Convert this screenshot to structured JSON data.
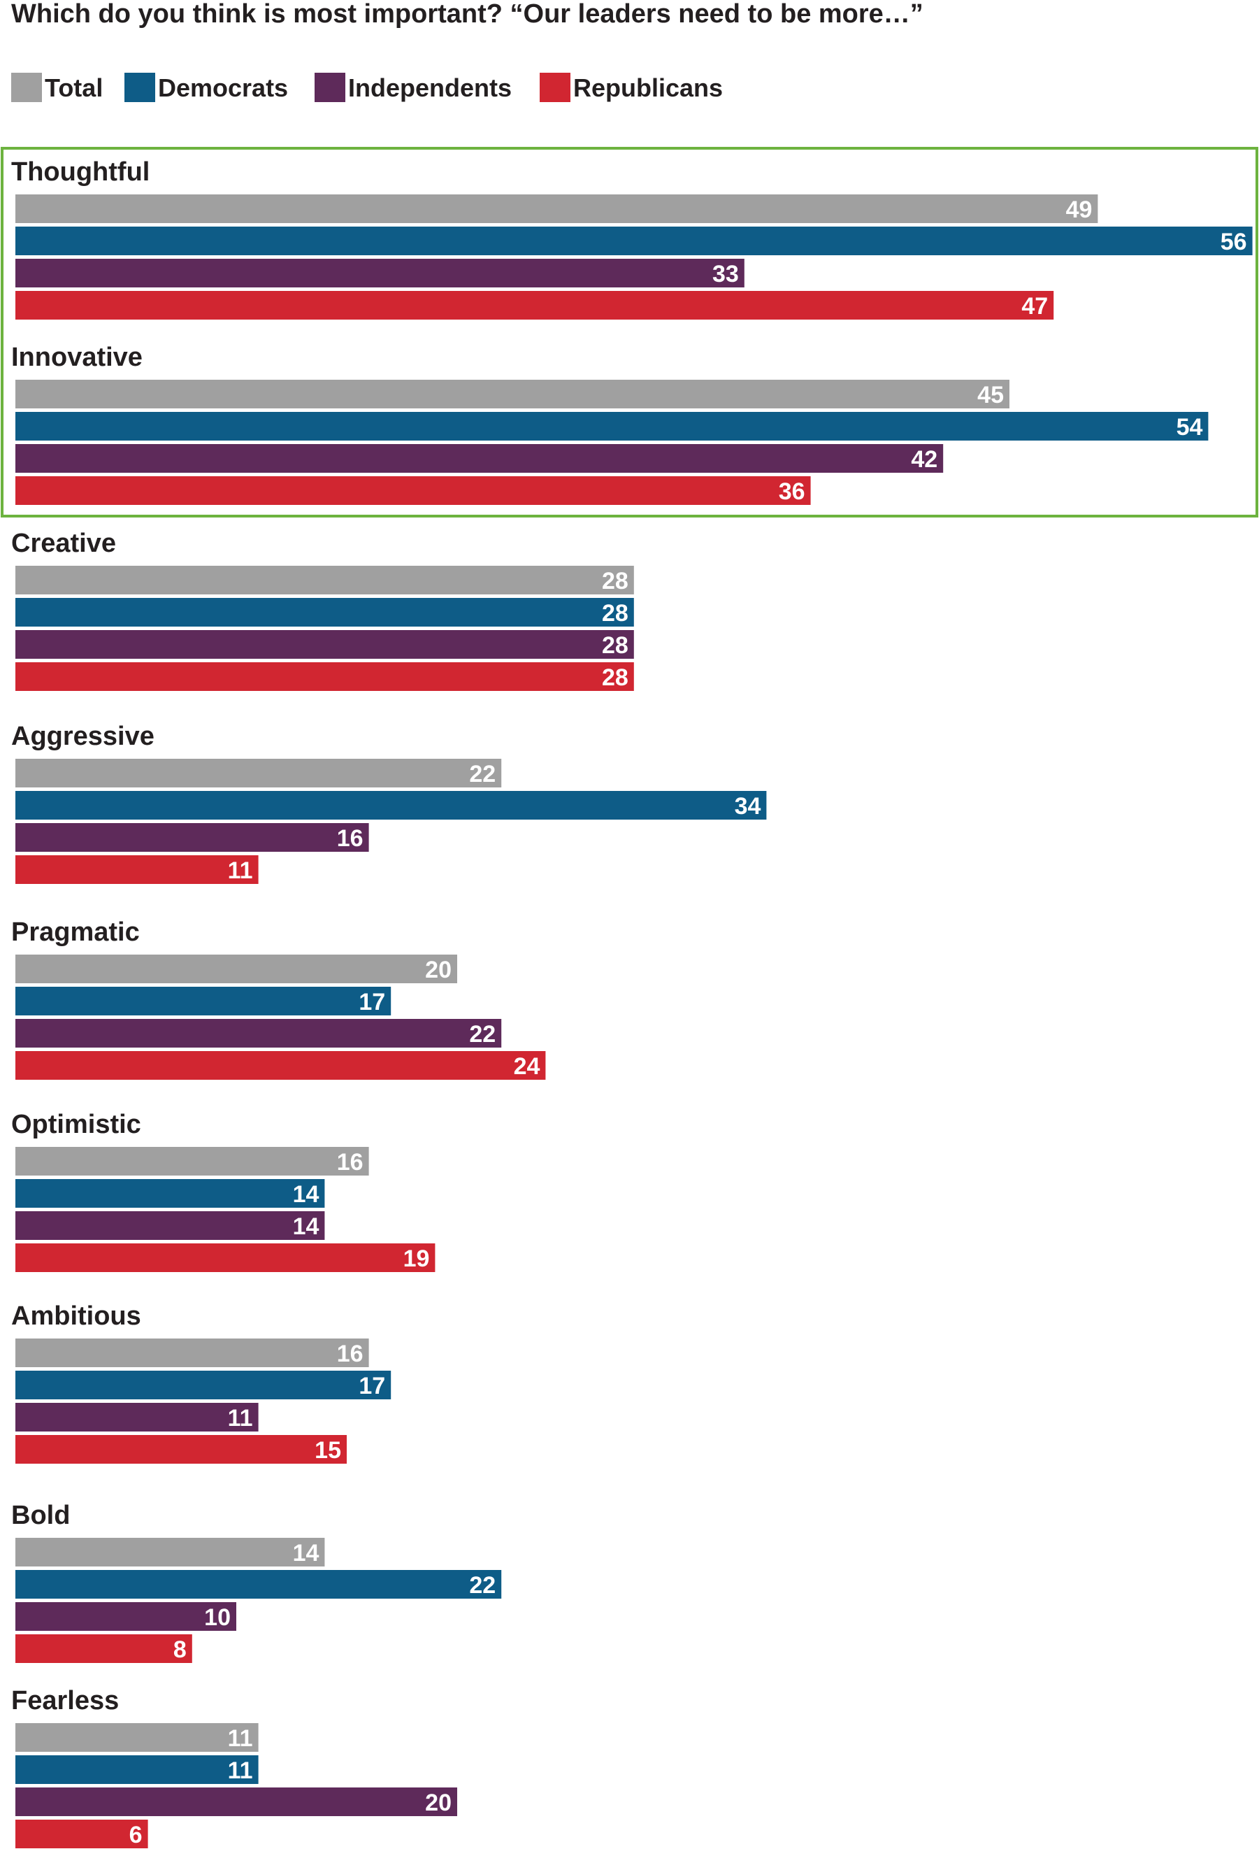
{
  "chart_data": {
    "type": "bar",
    "orientation": "horizontal",
    "title": "Which do you think is most important? “Our leaders need to be more…”",
    "legend_placement": "top-left",
    "grid": false,
    "xlim": [
      0,
      56
    ],
    "highlight": {
      "categories": [
        "Thoughtful",
        "Innovative"
      ],
      "color": "#6db33f"
    },
    "categories": [
      "Thoughtful",
      "Innovative",
      "Creative",
      "Aggressive",
      "Pragmatic",
      "Optimistic",
      "Ambitious",
      "Bold",
      "Fearless"
    ],
    "series": [
      {
        "name": "Total",
        "color": "#a0a0a0",
        "values": [
          49,
          45,
          28,
          22,
          20,
          16,
          16,
          14,
          11
        ]
      },
      {
        "name": "Democrats",
        "color": "#0e5c87",
        "values": [
          56,
          54,
          28,
          34,
          17,
          14,
          17,
          22,
          11
        ]
      },
      {
        "name": "Independents",
        "color": "#5e2a5a",
        "values": [
          33,
          42,
          28,
          16,
          22,
          14,
          11,
          10,
          20
        ]
      },
      {
        "name": "Republicans",
        "color": "#d12631",
        "values": [
          47,
          36,
          28,
          11,
          24,
          19,
          15,
          8,
          6
        ]
      }
    ]
  }
}
